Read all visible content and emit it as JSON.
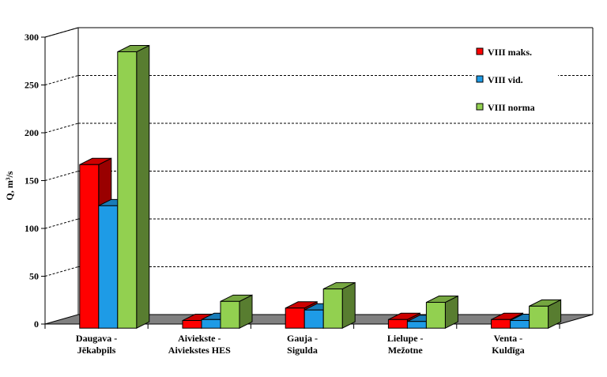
{
  "chart_data": {
    "type": "bar",
    "title": "",
    "xlabel": "",
    "ylabel": "Q, m³/s",
    "ylim": [
      0,
      300
    ],
    "yticks": [
      0,
      50,
      100,
      150,
      200,
      250,
      300
    ],
    "grid": true,
    "legend_position": "top-right",
    "categories": [
      [
        "Daugava -",
        "Jēkabpils"
      ],
      [
        "Aiviekste -",
        "Aiviekstes HES"
      ],
      [
        "Gauja -",
        "Sigulda"
      ],
      [
        "Lielupe -",
        "Mežotne"
      ],
      [
        "Venta -",
        "Kuldīga"
      ]
    ],
    "series": [
      {
        "name": "VIII maks.",
        "color": "#ff0000",
        "values": [
          171,
          8,
          21,
          9,
          9
        ]
      },
      {
        "name": "VIII vid.",
        "color": "#1e9be6",
        "values": [
          128,
          9,
          19,
          7,
          8
        ]
      },
      {
        "name": "VIII norma",
        "color": "#92d050",
        "values": [
          289,
          28,
          41,
          27,
          23
        ]
      }
    ]
  }
}
